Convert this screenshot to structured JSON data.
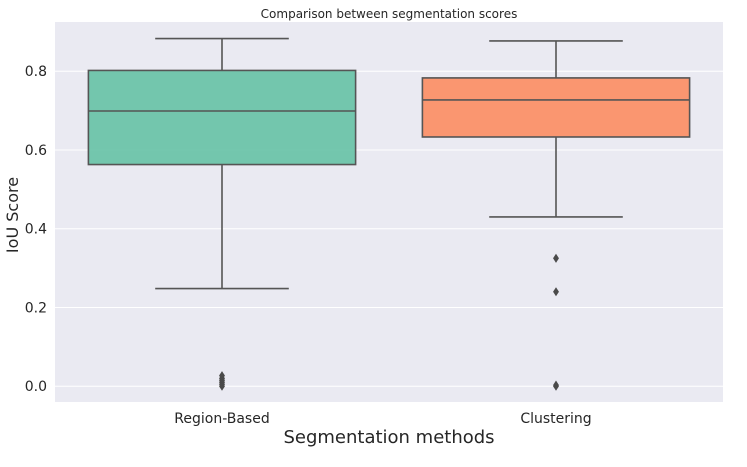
{
  "chart_data": {
    "type": "box",
    "title": "Comparison between segmentation scores",
    "xlabel": "Segmentation methods",
    "ylabel": "IoU Score",
    "ylim": [
      -0.04,
      0.925
    ],
    "yticks": [
      0.0,
      0.2,
      0.4,
      0.6,
      0.8
    ],
    "ytick_labels": [
      "0.0",
      "0.2",
      "0.4",
      "0.6",
      "0.8"
    ],
    "grid": true,
    "categories": [
      "Region-Based",
      "Clustering"
    ],
    "boxes": [
      {
        "category": "Region-Based",
        "color": "#66c2a5",
        "whisker_low": 0.248,
        "q1": 0.563,
        "median": 0.699,
        "q3": 0.802,
        "whisker_high": 0.883,
        "outliers": [
          0.0,
          0.005,
          0.01,
          0.015,
          0.02,
          0.027
        ]
      },
      {
        "category": "Clustering",
        "color": "#fc8d62",
        "whisker_low": 0.43,
        "q1": 0.633,
        "median": 0.727,
        "q3": 0.783,
        "whisker_high": 0.877,
        "outliers": [
          0.0,
          0.003,
          0.24,
          0.325
        ]
      }
    ],
    "colors": {
      "plot_background": "#eaeaf2",
      "grid": "#ffffff",
      "box_edge": "#555555"
    }
  }
}
